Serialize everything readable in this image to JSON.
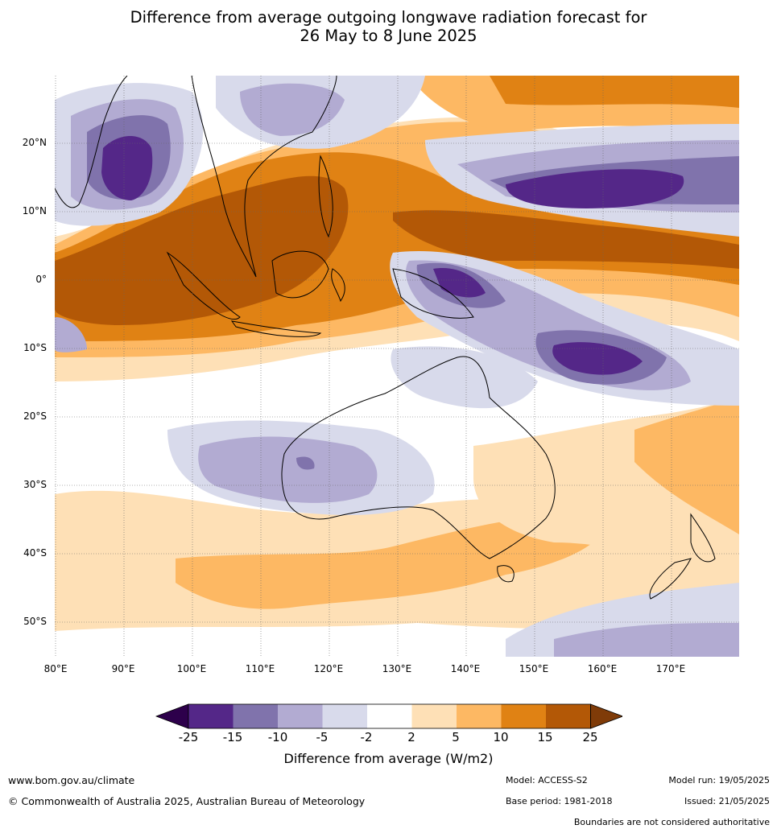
{
  "title_line1": "Difference from average outgoing longwave radiation forecast for",
  "title_line2": "26 May to 8 June 2025",
  "lat_labels": [
    "20°N",
    "10°N",
    "0°",
    "10°S",
    "20°S",
    "30°S",
    "40°S",
    "50°S"
  ],
  "lon_labels": [
    "80°E",
    "90°E",
    "100°E",
    "110°E",
    "120°E",
    "130°E",
    "140°E",
    "150°E",
    "160°E",
    "170°E"
  ],
  "colorbar": {
    "title": "Difference from average (W/m2)",
    "levels": [
      "-25",
      "-15",
      "-10",
      "-5",
      "-2",
      "2",
      "5",
      "10",
      "15",
      "25"
    ],
    "colors": [
      "#2d004b",
      "#542788",
      "#8073ac",
      "#b2abd2",
      "#d8daeb",
      "#ffffff",
      "#fee0b6",
      "#fdb863",
      "#e08214",
      "#b35806",
      "#7f3b08"
    ]
  },
  "footer": {
    "url": "www.bom.gov.au/climate",
    "copyright": "© Commonwealth of Australia 2025, Australian Bureau of Meteorology",
    "model": "Model: ACCESS-S2",
    "base_period": "Base period: 1981-2018",
    "model_run": "Model run: 19/05/2025",
    "issued": "Issued: 21/05/2025",
    "disclaimer": "Boundaries are not considered authoritative"
  }
}
